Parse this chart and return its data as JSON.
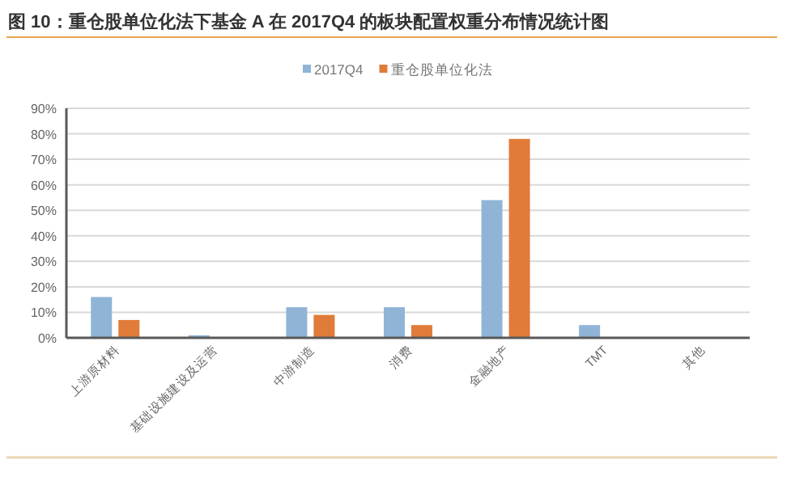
{
  "chart_data": {
    "type": "bar",
    "title": "图 10：重仓股单位化法下基金 A 在 2017Q4 的板块配置权重分布情况统计图",
    "categories": [
      "上游原材料",
      "基础设施建设及运营",
      "中游制造",
      "消费",
      "金融地产",
      "TMT",
      "其他"
    ],
    "series": [
      {
        "name": "2017Q4",
        "color": "#8fb4d6",
        "values": [
          16,
          1,
          12,
          12,
          54,
          5,
          0
        ]
      },
      {
        "name": "重仓股单位化法",
        "color": "#e07b39",
        "values": [
          7,
          0,
          9,
          5,
          78,
          0,
          0
        ]
      }
    ],
    "ylim": [
      0,
      90
    ],
    "yticks": [
      {
        "value": 0,
        "label": "0%"
      },
      {
        "value": 10,
        "label": "10%"
      },
      {
        "value": 20,
        "label": "20%"
      },
      {
        "value": 30,
        "label": "30%"
      },
      {
        "value": 40,
        "label": "40%"
      },
      {
        "value": 50,
        "label": "50%"
      },
      {
        "value": 60,
        "label": "60%"
      },
      {
        "value": 70,
        "label": "70%"
      },
      {
        "value": 80,
        "label": "80%"
      },
      {
        "value": 90,
        "label": "90%"
      }
    ],
    "grid": "y",
    "legend": "top"
  }
}
